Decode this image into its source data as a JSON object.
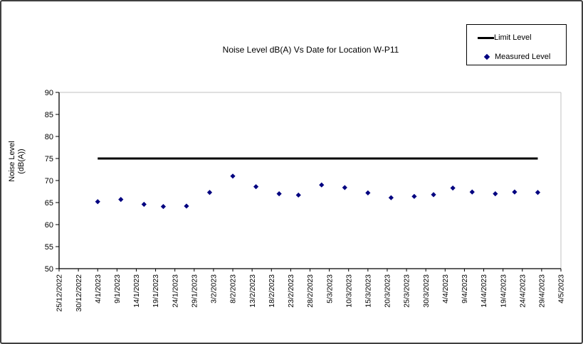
{
  "frame": {
    "background": "#ffffff",
    "border_color": "#3f3f3f"
  },
  "chart_data": {
    "type": "scatter",
    "title": "Noise Level dB(A) Vs Date for Location W-P11",
    "xlabel": "",
    "ylabel": "Noise Level (dB(A))",
    "ylabel_lines": [
      "Noise Level",
      "(dB(A))"
    ],
    "ylim": [
      50,
      90
    ],
    "yticks": [
      50,
      55,
      60,
      65,
      70,
      75,
      80,
      85,
      90
    ],
    "grid": "off",
    "legend_position": "top-right",
    "x_axis": {
      "start_label": "25/12/2022",
      "end_label": "4/5/2023",
      "tick_interval_days": 5,
      "total_days": 130,
      "tick_labels": [
        "25/12/2022",
        "30/12/2022",
        "4/1/2023",
        "9/1/2023",
        "14/1/2023",
        "19/1/2023",
        "24/1/2023",
        "29/1/2023",
        "3/2/2023",
        "8/2/2023",
        "13/2/2023",
        "18/2/2023",
        "23/2/2023",
        "28/2/2023",
        "5/3/2023",
        "10/3/2023",
        "15/3/2023",
        "20/3/2023",
        "25/3/2023",
        "30/3/2023",
        "4/4/2023",
        "9/4/2023",
        "14/4/2023",
        "19/4/2023",
        "24/4/2023",
        "29/4/2023",
        "4/5/2023"
      ]
    },
    "series": [
      {
        "name": "Limit Level",
        "type": "line",
        "color": "#000000",
        "value": 75,
        "start_day": 10,
        "end_day": 124
      },
      {
        "name": "Measured Level",
        "type": "points",
        "marker": "diamond",
        "color": "#000080",
        "points": [
          {
            "date": "4/1/2023",
            "day": 10,
            "value": 65.2
          },
          {
            "date": "10/1/2023",
            "day": 16,
            "value": 65.7
          },
          {
            "date": "16/1/2023",
            "day": 22,
            "value": 64.6
          },
          {
            "date": "21/1/2023",
            "day": 27,
            "value": 64.1
          },
          {
            "date": "27/1/2023",
            "day": 33,
            "value": 64.2
          },
          {
            "date": "2/2/2023",
            "day": 39,
            "value": 67.3
          },
          {
            "date": "8/2/2023",
            "day": 45,
            "value": 71.0
          },
          {
            "date": "14/2/2023",
            "day": 51,
            "value": 68.6
          },
          {
            "date": "20/2/2023",
            "day": 57,
            "value": 67.0
          },
          {
            "date": "25/2/2023",
            "day": 62,
            "value": 66.7
          },
          {
            "date": "3/3/2023",
            "day": 68,
            "value": 69.0
          },
          {
            "date": "9/3/2023",
            "day": 74,
            "value": 68.4
          },
          {
            "date": "15/3/2023",
            "day": 80,
            "value": 67.2
          },
          {
            "date": "21/3/2023",
            "day": 86,
            "value": 66.1
          },
          {
            "date": "27/3/2023",
            "day": 92,
            "value": 66.4
          },
          {
            "date": "1/4/2023",
            "day": 97,
            "value": 66.8
          },
          {
            "date": "6/4/2023",
            "day": 102,
            "value": 68.3
          },
          {
            "date": "11/4/2023",
            "day": 107,
            "value": 67.4
          },
          {
            "date": "17/4/2023",
            "day": 113,
            "value": 67.0
          },
          {
            "date": "22/4/2023",
            "day": 118,
            "value": 67.4
          },
          {
            "date": "28/4/2023",
            "day": 124,
            "value": 67.3
          }
        ]
      }
    ],
    "plot_colors": {
      "axis": "#000000",
      "plot_border_light": "#c0c0c0",
      "tick_text": "#000000"
    }
  }
}
